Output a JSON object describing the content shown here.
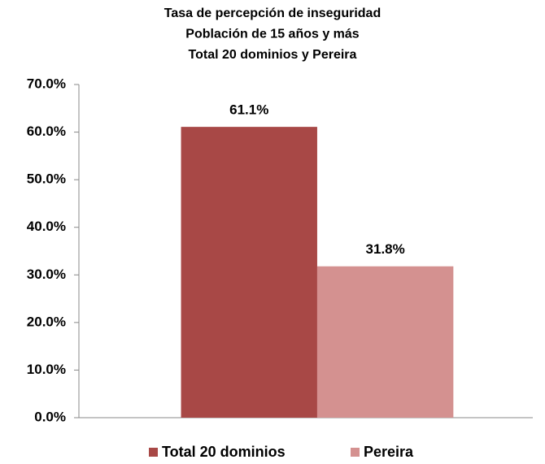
{
  "chart_data": {
    "type": "bar",
    "title": [
      "Tasa de percepción de inseguridad",
      "Población de 15 años y más",
      "Total 20 dominios y Pereira"
    ],
    "categories": [
      null
    ],
    "series": [
      {
        "name": "Total 20 dominios",
        "color": "#a84846",
        "values": [
          61.1
        ],
        "value_labels": [
          "61.1%"
        ]
      },
      {
        "name": "Pereira",
        "color": "#d49190",
        "values": [
          31.8
        ],
        "value_labels": [
          "31.8%"
        ]
      }
    ],
    "ylim": [
      0,
      70
    ],
    "yticks": [
      {
        "value": 0,
        "label": "0.0%"
      },
      {
        "value": 10,
        "label": "10.0%"
      },
      {
        "value": 20,
        "label": "20.0%"
      },
      {
        "value": 30,
        "label": "30.0%"
      },
      {
        "value": 40,
        "label": "40.0%"
      },
      {
        "value": 50,
        "label": "50.0%"
      },
      {
        "value": 60,
        "label": "60.0%"
      },
      {
        "value": 70,
        "label": "70.0%"
      }
    ],
    "legend": "bottom"
  }
}
